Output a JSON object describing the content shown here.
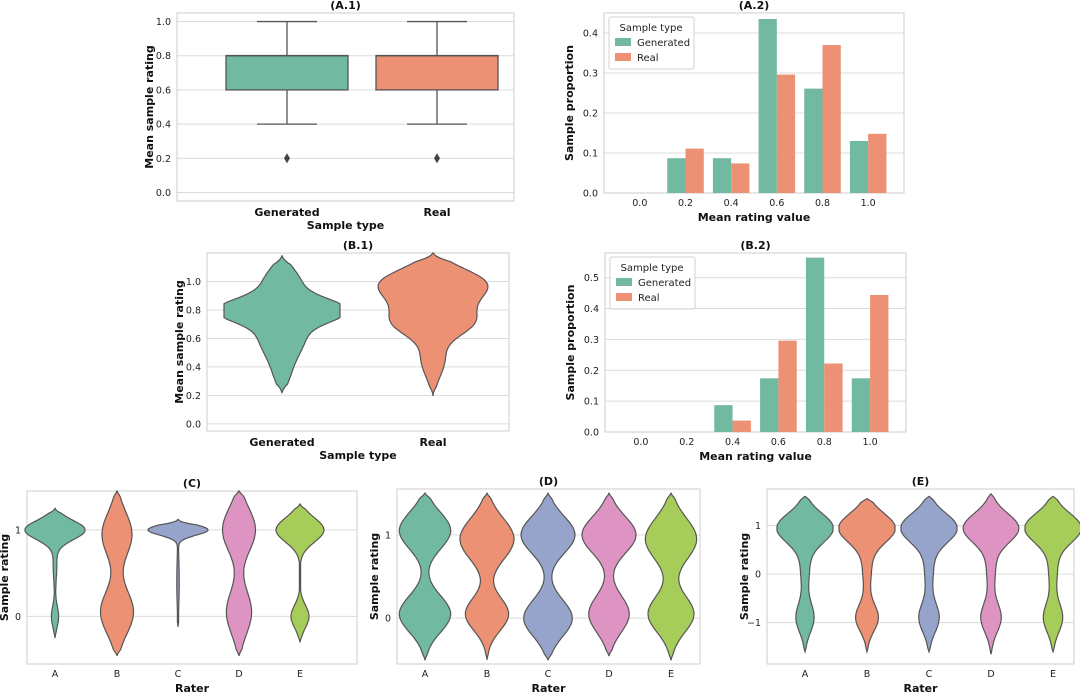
{
  "colors": {
    "generated": "#72b9a2",
    "real": "#ec9174",
    "raters": [
      "#72b9a2",
      "#ec9174",
      "#96a4cb",
      "#de94c3",
      "#a6cc5a"
    ],
    "outline": "#555555"
  },
  "chart_data": [
    {
      "id": "A1",
      "type": "box",
      "title": "(A.1)",
      "xlabel": "Sample type",
      "ylabel": "Mean sample rating",
      "categories": [
        "Generated",
        "Real"
      ],
      "ylim": [
        -0.05,
        1.05
      ],
      "yticks": [
        "0.0",
        "0.2",
        "0.4",
        "0.6",
        "0.8",
        "1.0"
      ],
      "boxes": [
        {
          "whisker_low": 0.4,
          "q1": 0.6,
          "median": 0.8,
          "q3": 0.8,
          "whisker_high": 1.0,
          "outliers": [
            0.2
          ]
        },
        {
          "whisker_low": 0.4,
          "q1": 0.6,
          "median": 0.8,
          "q3": 0.8,
          "whisker_high": 1.0,
          "outliers": [
            0.2
          ]
        }
      ]
    },
    {
      "id": "A2",
      "type": "bar",
      "title": "(A.2)",
      "xlabel": "Mean rating value",
      "ylabel": "Sample proportion",
      "categories": [
        "0.0",
        "0.2",
        "0.4",
        "0.6",
        "0.8",
        "1.0"
      ],
      "ylim": [
        0,
        0.45
      ],
      "yticks": [
        "0.0",
        "0.1",
        "0.2",
        "0.3",
        "0.4"
      ],
      "legend_title": "Sample type",
      "series": [
        {
          "name": "Generated",
          "values": [
            0,
            0.087,
            0.087,
            0.435,
            0.261,
            0.13
          ]
        },
        {
          "name": "Real",
          "values": [
            0,
            0.111,
            0.074,
            0.296,
            0.37,
            0.148
          ]
        }
      ]
    },
    {
      "id": "B1",
      "type": "violin",
      "title": "(B.1)",
      "xlabel": "Sample type",
      "ylabel": "Mean sample rating",
      "categories": [
        "Generated",
        "Real"
      ],
      "ylim": [
        -0.05,
        1.2
      ],
      "yticks": [
        "0.0",
        "0.2",
        "0.4",
        "0.6",
        "0.8",
        "1.0"
      ]
    },
    {
      "id": "B2",
      "type": "bar",
      "title": "(B.2)",
      "xlabel": "Mean rating value",
      "ylabel": "Sample proportion",
      "categories": [
        "0.0",
        "0.2",
        "0.4",
        "0.6",
        "0.8",
        "1.0"
      ],
      "ylim": [
        0,
        0.58
      ],
      "yticks": [
        "0.0",
        "0.1",
        "0.2",
        "0.3",
        "0.4",
        "0.5"
      ],
      "legend_title": "Sample type",
      "series": [
        {
          "name": "Generated",
          "values": [
            0,
            0,
            0.087,
            0.174,
            0.565,
            0.174
          ]
        },
        {
          "name": "Real",
          "values": [
            0,
            0,
            0.037,
            0.296,
            0.222,
            0.444
          ]
        }
      ]
    },
    {
      "id": "C",
      "type": "violin",
      "title": "(C)",
      "xlabel": "Rater",
      "ylabel": "Sample rating",
      "categories": [
        "A",
        "B",
        "C",
        "D",
        "E"
      ],
      "ylim": [
        -0.55,
        1.45
      ],
      "yticks": [
        "0",
        "1"
      ]
    },
    {
      "id": "D",
      "type": "violin",
      "title": "(D)",
      "xlabel": "Rater",
      "ylabel": "Sample rating",
      "categories": [
        "A",
        "B",
        "C",
        "D",
        "E"
      ],
      "ylim": [
        -0.55,
        1.55
      ],
      "yticks": [
        "0",
        "1"
      ]
    },
    {
      "id": "E",
      "type": "violin",
      "title": "(E)",
      "xlabel": "Rater",
      "ylabel": "Sample rating",
      "categories": [
        "A",
        "B",
        "C",
        "D",
        "E"
      ],
      "ylim": [
        -1.85,
        1.75
      ],
      "yticks": [
        "−1",
        "0",
        "1"
      ]
    }
  ]
}
